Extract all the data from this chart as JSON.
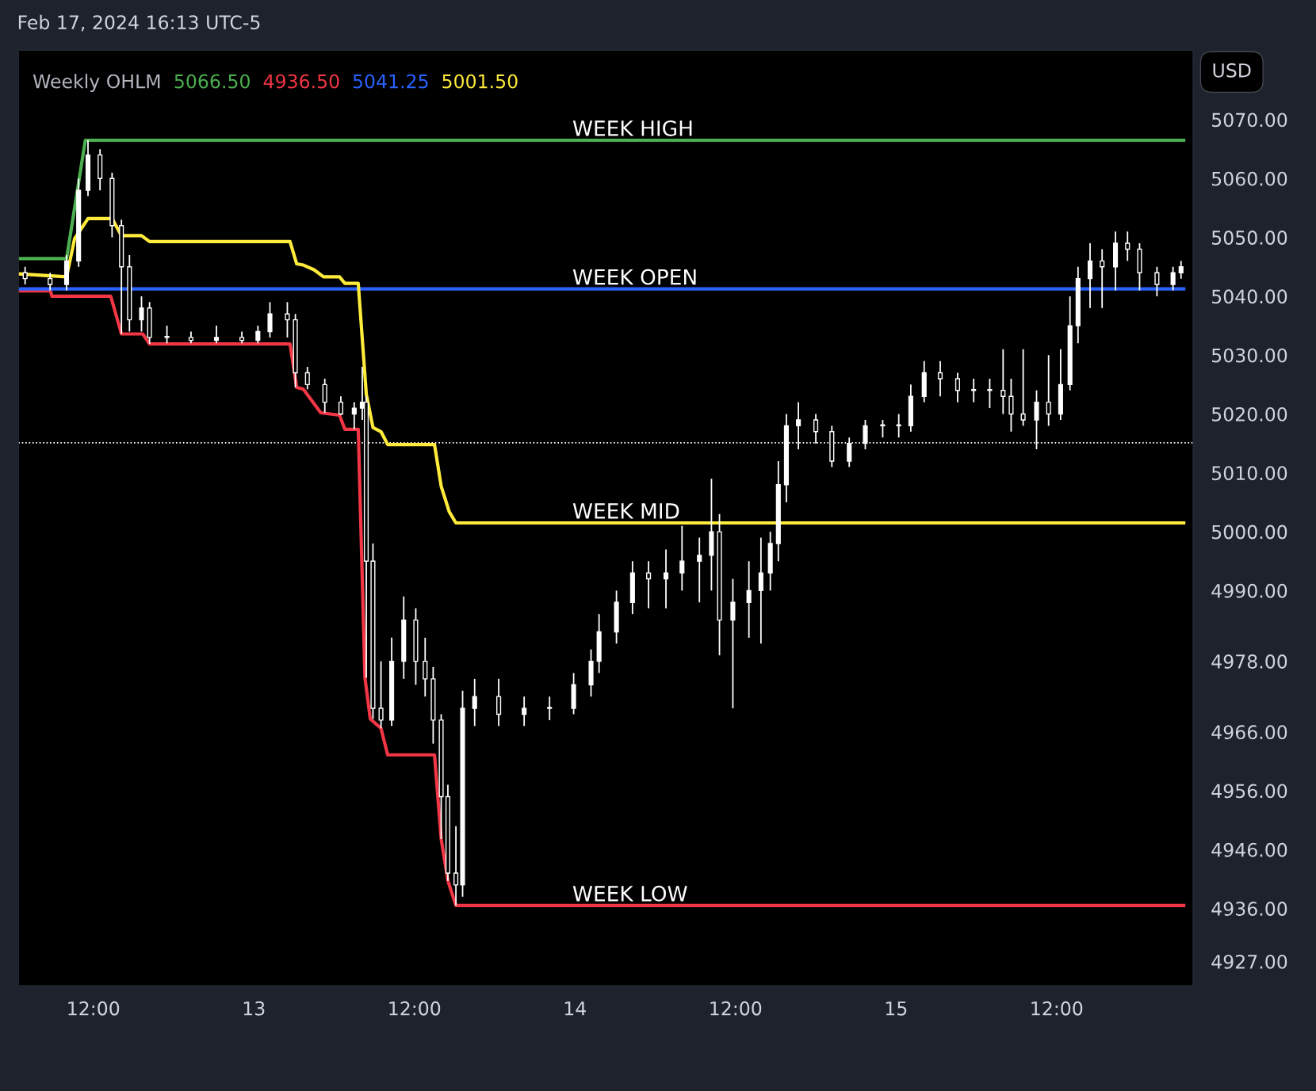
{
  "chart_data": {
    "type": "candlestick",
    "title": "Weekly OHLM",
    "legend": "top left",
    "grid": false,
    "annotations": [
      "Feb 17, 2024 16:13 UTC-5",
      "USD",
      {
        "text": "WEEK HIGH",
        "x": "2024-02-13T23:48",
        "y": 5066.5
      },
      {
        "text": "WEEK OPEN",
        "x": "2024-02-13T23:48",
        "y": 5041.25
      },
      {
        "text": "WEEK MID",
        "x": "2024-02-13T23:48",
        "y": 5001.5
      },
      {
        "text": "WEEK LOW",
        "x": "2024-02-13T23:48",
        "y": 4936.5
      }
    ],
    "x": [
      "2024-02-12T06:54",
      "2024-02-12T08:46",
      "2024-02-12T10:00",
      "2024-02-12T10:54",
      "2024-02-12T11:36",
      "2024-02-12T12:30",
      "2024-02-12T13:24",
      "2024-02-12T14:06",
      "2024-02-12T14:42",
      "2024-02-12T15:36",
      "2024-02-12T16:12",
      "2024-02-12T17:30",
      "2024-02-12T19:18",
      "2024-02-12T21:12",
      "2024-02-12T23:06",
      "2024-02-13T00:18",
      "2024-02-13T01:12",
      "2024-02-13T02:30",
      "2024-02-13T03:06",
      "2024-02-13T04:00",
      "2024-02-13T05:18",
      "2024-02-13T06:30",
      "2024-02-13T07:30",
      "2024-02-13T08:06",
      "2024-02-13T08:24",
      "2024-02-13T08:54",
      "2024-02-13T09:30",
      "2024-02-13T10:18",
      "2024-02-13T11:12",
      "2024-02-13T12:06",
      "2024-02-13T12:48",
      "2024-02-13T13:24",
      "2024-02-13T14:00",
      "2024-02-13T14:30",
      "2024-02-13T15:06",
      "2024-02-13T15:36",
      "2024-02-13T16:30",
      "2024-02-13T18:18",
      "2024-02-13T20:12",
      "2024-02-13T22:06",
      "2024-02-13T23:54",
      "2024-02-14T01:12",
      "2024-02-14T01:48",
      "2024-02-14T03:06",
      "2024-02-14T04:18",
      "2024-02-14T05:30",
      "2024-02-14T06:48",
      "2024-02-14T08:00",
      "2024-02-14T09:18",
      "2024-02-14T10:12",
      "2024-02-14T10:48",
      "2024-02-14T11:48",
      "2024-02-14T13:00",
      "2024-02-14T13:54",
      "2024-02-14T14:36",
      "2024-02-14T15:12",
      "2024-02-14T15:48",
      "2024-02-14T16:42",
      "2024-02-14T18:00",
      "2024-02-14T19:12",
      "2024-02-14T20:30",
      "2024-02-14T21:42",
      "2024-02-14T23:00",
      "2024-02-15T00:12",
      "2024-02-15T01:06",
      "2024-02-15T02:06",
      "2024-02-15T03:18",
      "2024-02-15T04:36",
      "2024-02-15T05:48",
      "2024-02-15T07:00",
      "2024-02-15T08:00",
      "2024-02-15T08:36",
      "2024-02-15T09:30",
      "2024-02-15T10:30",
      "2024-02-15T11:24",
      "2024-02-15T12:18",
      "2024-02-15T13:00",
      "2024-02-15T13:36",
      "2024-02-15T14:30",
      "2024-02-15T15:24",
      "2024-02-15T16:24",
      "2024-02-15T17:18",
      "2024-02-15T18:12",
      "2024-02-15T19:30",
      "2024-02-15T20:42",
      "2024-02-15T21:18"
    ],
    "ohlc": [
      [
        5044,
        5045,
        5042,
        5043
      ],
      [
        5043,
        5044,
        5041,
        5042
      ],
      [
        5042,
        5047,
        5041,
        5046
      ],
      [
        5046,
        5060,
        5045,
        5058
      ],
      [
        5058,
        5066.5,
        5057,
        5064
      ],
      [
        5064,
        5065,
        5058,
        5060
      ],
      [
        5060,
        5061,
        5050,
        5052
      ],
      [
        5052,
        5053,
        5033.6,
        5045
      ],
      [
        5045,
        5047,
        5034,
        5036
      ],
      [
        5036,
        5040,
        5034,
        5038
      ],
      [
        5038,
        5039,
        5031.9,
        5033
      ],
      [
        5033,
        5035,
        5032,
        5033
      ],
      [
        5033,
        5034,
        5032,
        5032.5
      ],
      [
        5032.5,
        5035,
        5032,
        5033
      ],
      [
        5033,
        5034,
        5032,
        5032.5
      ],
      [
        5032.5,
        5035,
        5032,
        5034
      ],
      [
        5034,
        5039,
        5033,
        5037
      ],
      [
        5037,
        5039,
        5033,
        5036
      ],
      [
        5036,
        5037,
        5024.5,
        5027
      ],
      [
        5027,
        5028,
        5024.2,
        5025
      ],
      [
        5025,
        5026,
        5020.2,
        5022
      ],
      [
        5022,
        5023,
        5019.8,
        5020
      ],
      [
        5020,
        5022,
        5017.4,
        5021
      ],
      [
        5021,
        5028,
        5019,
        5022
      ],
      [
        5022,
        5023,
        4975.2,
        4995
      ],
      [
        4995,
        4998,
        4968.2,
        4970
      ],
      [
        4970,
        4978,
        4966.6,
        4968
      ],
      [
        4968,
        4982,
        4967,
        4978
      ],
      [
        4978,
        4989,
        4975,
        4985
      ],
      [
        4985,
        4987,
        4974,
        4978
      ],
      [
        4978,
        4982,
        4972,
        4975
      ],
      [
        4975,
        4977,
        4964,
        4968
      ],
      [
        4968,
        4969,
        4947.8,
        4955
      ],
      [
        4955,
        4957,
        4940.7,
        4942
      ],
      [
        4942,
        4950,
        4936.5,
        4940
      ],
      [
        4940,
        4973,
        4938,
        4970
      ],
      [
        4970,
        4975,
        4967,
        4972
      ],
      [
        4972,
        4975,
        4967,
        4969
      ],
      [
        4969,
        4972,
        4967,
        4970
      ],
      [
        4970,
        4972,
        4968,
        4970
      ],
      [
        4970,
        4976,
        4969,
        4974
      ],
      [
        4974,
        4980,
        4972,
        4978
      ],
      [
        4978,
        4986,
        4976,
        4983
      ],
      [
        4983,
        4990,
        4981,
        4988
      ],
      [
        4988,
        4995,
        4986,
        4993
      ],
      [
        4993,
        4995,
        4987,
        4992
      ],
      [
        4992,
        4997,
        4987,
        4993
      ],
      [
        4993,
        5001,
        4990,
        4995
      ],
      [
        4995,
        4999,
        4988,
        4996
      ],
      [
        4996,
        5009,
        4990,
        5000
      ],
      [
        5000,
        5003,
        4979,
        4985
      ],
      [
        4985,
        4992,
        4970,
        4988
      ],
      [
        4988,
        4995,
        4982,
        4990
      ],
      [
        4990,
        4999,
        4981,
        4993
      ],
      [
        4993,
        5000,
        4990,
        4998
      ],
      [
        4998,
        5012,
        4995,
        5008
      ],
      [
        5008,
        5020,
        5005,
        5018
      ],
      [
        5018,
        5022,
        5014,
        5019
      ],
      [
        5019,
        5020,
        5015,
        5017
      ],
      [
        5017,
        5018,
        5011,
        5012
      ],
      [
        5012,
        5016,
        5011,
        5015
      ],
      [
        5015,
        5019,
        5014,
        5018
      ],
      [
        5018,
        5019,
        5016,
        5018
      ],
      [
        5018,
        5020,
        5016,
        5018
      ],
      [
        5018,
        5025,
        5017,
        5023
      ],
      [
        5023,
        5029,
        5022,
        5027
      ],
      [
        5027,
        5029,
        5023,
        5026
      ],
      [
        5026,
        5027,
        5022,
        5024
      ],
      [
        5024,
        5026,
        5022,
        5024
      ],
      [
        5024,
        5026,
        5021,
        5024
      ],
      [
        5024,
        5031,
        5020,
        5023
      ],
      [
        5023,
        5026,
        5017,
        5020
      ],
      [
        5020,
        5031,
        5018,
        5019
      ],
      [
        5019,
        5024,
        5014,
        5022
      ],
      [
        5022,
        5030,
        5018,
        5020
      ],
      [
        5020,
        5031,
        5019,
        5025
      ],
      [
        5025,
        5040,
        5024,
        5035
      ],
      [
        5035,
        5045,
        5032,
        5043
      ],
      [
        5043,
        5049,
        5038,
        5046
      ],
      [
        5046,
        5048,
        5038,
        5045
      ],
      [
        5045,
        5051,
        5041,
        5049
      ],
      [
        5049,
        5051,
        5046,
        5048
      ],
      [
        5048,
        5049,
        5041,
        5044
      ],
      [
        5044,
        5045,
        5040,
        5042
      ],
      [
        5042,
        5045,
        5041,
        5044
      ],
      [
        5044,
        5046,
        5043,
        5045
      ]
    ],
    "series": [
      {
        "name": "5066.50",
        "type": "line",
        "color": "#4caf50",
        "x": [
          "2024-02-12T06:24",
          "2024-02-12T10:00",
          "2024-02-12T11:24",
          "2024-02-15T21:30"
        ],
        "values": [
          5046.4,
          5046.4,
          5066.5,
          5066.5
        ]
      },
      {
        "name": "4936.50",
        "type": "line",
        "color": "#f23645",
        "x": [
          "2024-02-12T06:24",
          "2024-02-12T08:48",
          "2024-02-12T08:54",
          "2024-02-12T13:18",
          "2024-02-12T14:06",
          "2024-02-12T15:42",
          "2024-02-12T16:12",
          "2024-02-13T02:42",
          "2024-02-13T03:12",
          "2024-02-13T03:42",
          "2024-02-13T05:00",
          "2024-02-13T06:24",
          "2024-02-13T06:48",
          "2024-02-13T07:48",
          "2024-02-13T08:18",
          "2024-02-13T08:42",
          "2024-02-13T09:30",
          "2024-02-13T10:00",
          "2024-02-13T13:30",
          "2024-02-13T14:00",
          "2024-02-13T14:30",
          "2024-02-13T15:06",
          "2024-02-15T21:30"
        ],
        "values": [
          5040.9,
          5040.9,
          5040.0,
          5040.0,
          5033.6,
          5033.6,
          5031.9,
          5031.9,
          5024.5,
          5024.2,
          5020.2,
          5019.8,
          5017.4,
          5017.4,
          4975.2,
          4968.2,
          4966.6,
          4962.1,
          4962.1,
          4947.8,
          4940.7,
          4936.5,
          4936.5
        ]
      },
      {
        "name": "5041.25",
        "type": "line",
        "color": "#2962ff",
        "x": [
          "2024-02-12T06:24",
          "2024-02-15T21:30"
        ],
        "values": [
          5041.25,
          5041.25
        ]
      },
      {
        "name": "5001.50",
        "type": "line",
        "color": "#ffeb3b",
        "x": [
          "2024-02-12T06:24",
          "2024-02-12T10:00",
          "2024-02-12T10:36",
          "2024-02-12T11:36",
          "2024-02-12T13:24",
          "2024-02-12T14:06",
          "2024-02-12T15:36",
          "2024-02-12T16:12",
          "2024-02-13T02:42",
          "2024-02-13T03:12",
          "2024-02-13T03:42",
          "2024-02-13T04:30",
          "2024-02-13T05:12",
          "2024-02-13T06:24",
          "2024-02-13T06:48",
          "2024-02-13T07:48",
          "2024-02-13T08:24",
          "2024-02-13T08:54",
          "2024-02-13T09:30",
          "2024-02-13T10:00",
          "2024-02-13T13:30",
          "2024-02-13T14:00",
          "2024-02-13T14:36",
          "2024-02-13T15:06",
          "2024-02-15T21:30"
        ],
        "values": [
          5043.8,
          5043.3,
          5049.8,
          5053.2,
          5053.2,
          5050.3,
          5050.3,
          5049.3,
          5049.3,
          5045.5,
          5045.3,
          5044.5,
          5043.3,
          5043.3,
          5042.2,
          5042.2,
          5023.4,
          5017.7,
          5017.0,
          5014.8,
          5014.8,
          5007.7,
          5003.4,
          5001.5,
          5001.5
        ]
      }
    ],
    "ref_lines": [
      {
        "axis": "y",
        "value": 5015.1,
        "label": null,
        "color": "#ffffff",
        "line_style": "dotted"
      }
    ],
    "xlim": [
      "2024-02-12T06:24",
      "2024-02-15T22:12"
    ],
    "ylim": [
      4922.9,
      5081.8
    ],
    "xticks": [
      {
        "value": "2024-02-12T12:00",
        "label": "12:00"
      },
      {
        "value": "2024-02-13",
        "label": "13"
      },
      {
        "value": "2024-02-13T12:00",
        "label": "12:00"
      },
      {
        "value": "2024-02-14",
        "label": "14"
      },
      {
        "value": "2024-02-14T12:00",
        "label": "12:00"
      },
      {
        "value": "2024-02-15",
        "label": "15"
      },
      {
        "value": "2024-02-15T12:00",
        "label": "12:00"
      }
    ],
    "yticks": [
      {
        "value": 5070,
        "label": "5070.00"
      },
      {
        "value": 5060,
        "label": "5060.00"
      },
      {
        "value": 5050,
        "label": "5050.00"
      },
      {
        "value": 5040,
        "label": "5040.00"
      },
      {
        "value": 5030,
        "label": "5030.00"
      },
      {
        "value": 5020,
        "label": "5020.00"
      },
      {
        "value": 5010,
        "label": "5010.00"
      },
      {
        "value": 5000,
        "label": "5000.00"
      },
      {
        "value": 4990,
        "label": "4990.00"
      },
      {
        "value": 4978,
        "label": "4978.00"
      },
      {
        "value": 4966,
        "label": "4966.00"
      },
      {
        "value": 4956,
        "label": "4956.00"
      },
      {
        "value": 4946,
        "label": "4946.00"
      },
      {
        "value": 4936,
        "label": "4936.00"
      },
      {
        "value": 4927,
        "label": "4927.00"
      }
    ]
  }
}
